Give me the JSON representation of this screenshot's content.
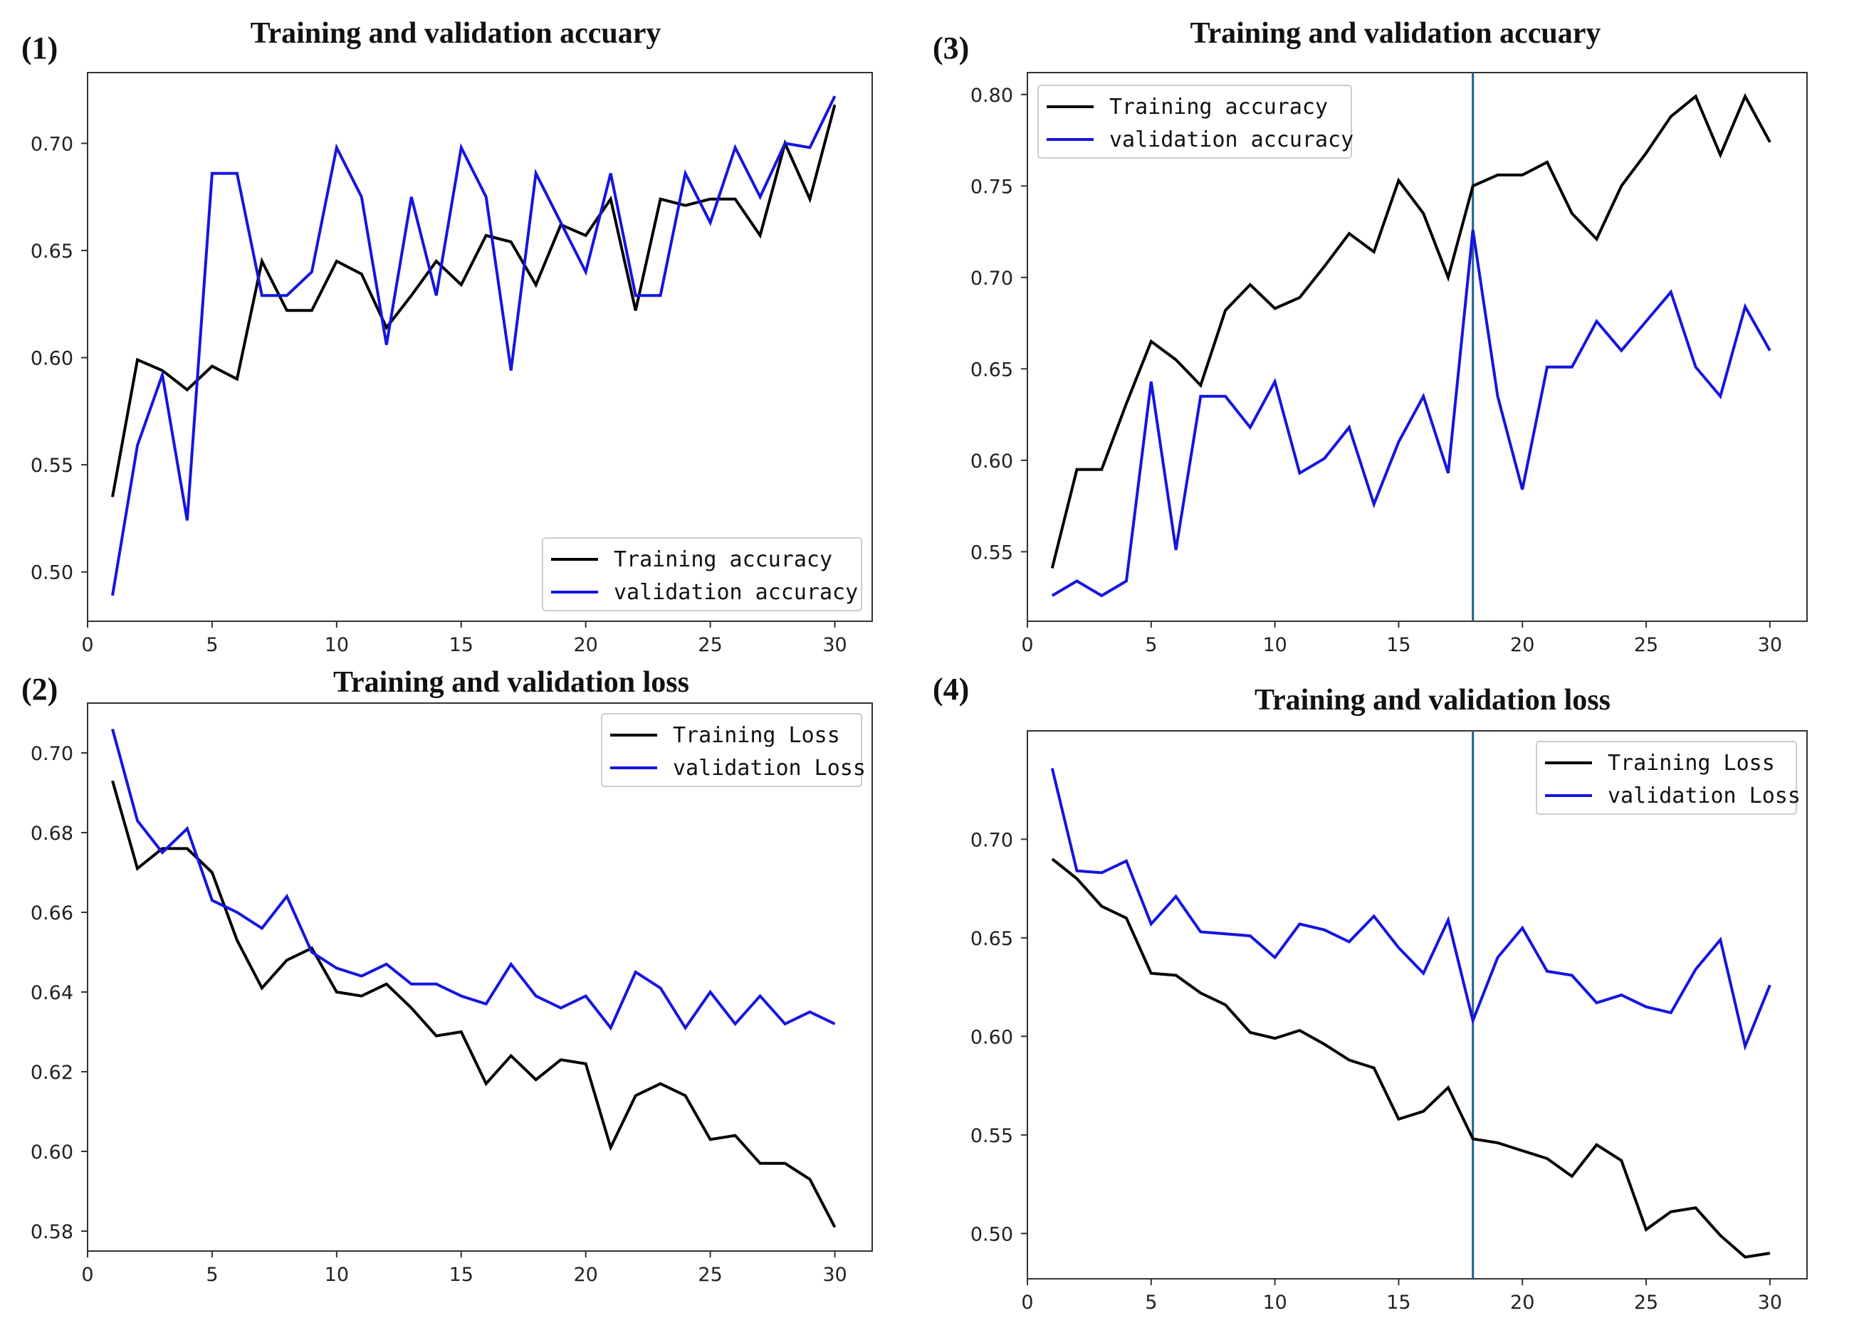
{
  "colors": {
    "training": "#000000",
    "validation": "#1515e0",
    "marker": "#1f5f8b",
    "axis": "#333333",
    "legend_border": "#cccccc"
  },
  "chart_data": [
    {
      "id": "1",
      "label": "(1)",
      "type": "line",
      "title": "Training and validation accuary",
      "xlabel": "",
      "ylabel": "",
      "xlim": [
        0,
        31.5
      ],
      "ylim": [
        0.477,
        0.733
      ],
      "xticks": [
        0,
        5,
        10,
        15,
        20,
        25,
        30
      ],
      "xtick_labels": [
        "0",
        "5",
        "10",
        "15",
        "20",
        "25",
        "30"
      ],
      "yticks": [
        0.5,
        0.55,
        0.6,
        0.65,
        0.7
      ],
      "ytick_labels": [
        "0.50",
        "0.55",
        "0.60",
        "0.65",
        "0.70"
      ],
      "legend_position": "lower-right",
      "vline": null,
      "x": [
        1,
        2,
        3,
        4,
        5,
        6,
        7,
        8,
        9,
        10,
        11,
        12,
        13,
        14,
        15,
        16,
        17,
        18,
        19,
        20,
        21,
        22,
        23,
        24,
        25,
        26,
        27,
        28,
        29,
        30
      ],
      "series": [
        {
          "name": "Training accuracy",
          "color_key": "training",
          "values": [
            0.535,
            0.599,
            0.594,
            0.585,
            0.596,
            0.59,
            0.645,
            0.622,
            0.622,
            0.645,
            0.639,
            0.614,
            0.629,
            0.645,
            0.634,
            0.657,
            0.654,
            0.634,
            0.662,
            0.657,
            0.674,
            0.622,
            0.674,
            0.671,
            0.674,
            0.674,
            0.657,
            0.7,
            0.674,
            0.718
          ]
        },
        {
          "name": "validation accuracy",
          "color_key": "validation",
          "values": [
            0.489,
            0.559,
            0.592,
            0.524,
            0.686,
            0.686,
            0.629,
            0.629,
            0.64,
            0.698,
            0.675,
            0.606,
            0.675,
            0.629,
            0.698,
            0.675,
            0.594,
            0.686,
            0.663,
            0.64,
            0.686,
            0.629,
            0.629,
            0.686,
            0.663,
            0.698,
            0.675,
            0.7,
            0.698,
            0.722
          ]
        }
      ]
    },
    {
      "id": "2",
      "label": "(2)",
      "type": "line",
      "title": "Training and validation loss",
      "xlabel": "",
      "ylabel": "",
      "xlim": [
        0,
        31.5
      ],
      "ylim": [
        0.575,
        0.7125
      ],
      "xticks": [
        0,
        5,
        10,
        15,
        20,
        25,
        30
      ],
      "xtick_labels": [
        "0",
        "5",
        "10",
        "15",
        "20",
        "25",
        "30"
      ],
      "yticks": [
        0.58,
        0.6,
        0.62,
        0.64,
        0.66,
        0.68,
        0.7
      ],
      "ytick_labels": [
        "0.58",
        "0.60",
        "0.62",
        "0.64",
        "0.66",
        "0.68",
        "0.70"
      ],
      "legend_position": "top-right",
      "vline": null,
      "x": [
        1,
        2,
        3,
        4,
        5,
        6,
        7,
        8,
        9,
        10,
        11,
        12,
        13,
        14,
        15,
        16,
        17,
        18,
        19,
        20,
        21,
        22,
        23,
        24,
        25,
        26,
        27,
        28,
        29,
        30
      ],
      "series": [
        {
          "name": "Training Loss",
          "color_key": "training",
          "values": [
            0.693,
            0.671,
            0.676,
            0.676,
            0.67,
            0.653,
            0.641,
            0.648,
            0.651,
            0.64,
            0.639,
            0.642,
            0.636,
            0.629,
            0.63,
            0.617,
            0.624,
            0.618,
            0.623,
            0.622,
            0.601,
            0.614,
            0.617,
            0.614,
            0.603,
            0.604,
            0.597,
            0.597,
            0.593,
            0.581
          ]
        },
        {
          "name": "validation Loss",
          "color_key": "validation",
          "values": [
            0.706,
            0.683,
            0.675,
            0.681,
            0.663,
            0.66,
            0.656,
            0.664,
            0.65,
            0.646,
            0.644,
            0.647,
            0.642,
            0.642,
            0.639,
            0.637,
            0.647,
            0.639,
            0.636,
            0.639,
            0.631,
            0.645,
            0.641,
            0.631,
            0.64,
            0.632,
            0.639,
            0.632,
            0.635,
            0.632
          ]
        }
      ]
    },
    {
      "id": "3",
      "label": "(3)",
      "type": "line",
      "title": "Training and validation accuary",
      "xlabel": "",
      "ylabel": "",
      "xlim": [
        0,
        31.5
      ],
      "ylim": [
        0.512,
        0.812
      ],
      "xticks": [
        0,
        5,
        10,
        15,
        20,
        25,
        30
      ],
      "xtick_labels": [
        "0",
        "5",
        "10",
        "15",
        "20",
        "25",
        "30"
      ],
      "yticks": [
        0.55,
        0.6,
        0.65,
        0.7,
        0.75,
        0.8
      ],
      "ytick_labels": [
        "0.55",
        "0.60",
        "0.65",
        "0.70",
        "0.75",
        "0.80"
      ],
      "legend_position": "top-left",
      "vline": 18,
      "x": [
        1,
        2,
        3,
        4,
        5,
        6,
        7,
        8,
        9,
        10,
        11,
        12,
        13,
        14,
        15,
        16,
        17,
        18,
        19,
        20,
        21,
        22,
        23,
        24,
        25,
        26,
        27,
        28,
        29,
        30
      ],
      "series": [
        {
          "name": "Training accuracy",
          "color_key": "training",
          "values": [
            0.541,
            0.595,
            0.595,
            0.631,
            0.665,
            0.655,
            0.641,
            0.682,
            0.696,
            0.683,
            0.689,
            0.706,
            0.724,
            0.714,
            0.753,
            0.735,
            0.7,
            0.75,
            0.756,
            0.756,
            0.763,
            0.735,
            0.721,
            0.75,
            0.768,
            0.788,
            0.799,
            0.767,
            0.799,
            0.774
          ]
        },
        {
          "name": "validation accuracy",
          "color_key": "validation",
          "values": [
            0.526,
            0.534,
            0.526,
            0.534,
            0.643,
            0.551,
            0.635,
            0.635,
            0.618,
            0.643,
            0.593,
            0.601,
            0.618,
            0.576,
            0.61,
            0.635,
            0.593,
            0.726,
            0.635,
            0.584,
            0.651,
            0.651,
            0.676,
            0.66,
            0.676,
            0.692,
            0.651,
            0.635,
            0.684,
            0.66
          ]
        }
      ]
    },
    {
      "id": "4",
      "label": "(4)",
      "type": "line",
      "title": "Training and validation loss",
      "xlabel": "",
      "ylabel": "",
      "xlim": [
        0,
        31.5
      ],
      "ylim": [
        0.477,
        0.755
      ],
      "xticks": [
        0,
        5,
        10,
        15,
        20,
        25,
        30
      ],
      "xtick_labels": [
        "0",
        "5",
        "10",
        "15",
        "20",
        "25",
        "30"
      ],
      "yticks": [
        0.5,
        0.55,
        0.6,
        0.65,
        0.7
      ],
      "ytick_labels": [
        "0.50",
        "0.55",
        "0.60",
        "0.65",
        "0.70"
      ],
      "legend_position": "top-right",
      "vline": 18,
      "x": [
        1,
        2,
        3,
        4,
        5,
        6,
        7,
        8,
        9,
        10,
        11,
        12,
        13,
        14,
        15,
        16,
        17,
        18,
        19,
        20,
        21,
        22,
        23,
        24,
        25,
        26,
        27,
        28,
        29,
        30
      ],
      "series": [
        {
          "name": "Training Loss",
          "color_key": "training",
          "values": [
            0.69,
            0.68,
            0.666,
            0.66,
            0.632,
            0.631,
            0.622,
            0.616,
            0.602,
            0.599,
            0.603,
            0.596,
            0.588,
            0.584,
            0.558,
            0.562,
            0.574,
            0.548,
            0.546,
            0.542,
            0.538,
            0.529,
            0.545,
            0.537,
            0.502,
            0.511,
            0.513,
            0.499,
            0.488,
            0.49
          ]
        },
        {
          "name": "validation Loss",
          "color_key": "validation",
          "values": [
            0.736,
            0.684,
            0.683,
            0.689,
            0.657,
            0.671,
            0.653,
            0.652,
            0.651,
            0.64,
            0.657,
            0.654,
            0.648,
            0.661,
            0.645,
            0.632,
            0.659,
            0.608,
            0.64,
            0.655,
            0.633,
            0.631,
            0.617,
            0.621,
            0.615,
            0.612,
            0.634,
            0.649,
            0.595,
            0.626
          ]
        }
      ]
    }
  ]
}
